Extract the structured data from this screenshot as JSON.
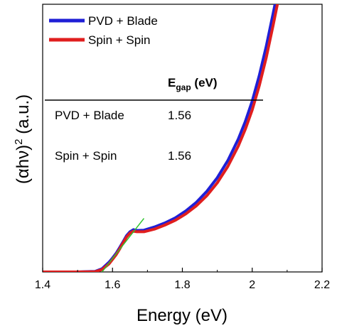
{
  "chart_data": {
    "type": "line",
    "xlabel": "Energy (eV)",
    "ylabel_main": "(αhν)",
    "ylabel_sup": "2",
    "ylabel_tail": " (a.u.)",
    "xlim": [
      1.4,
      2.2
    ],
    "ylim": [
      0,
      100
    ],
    "x_ticks": [
      1.4,
      1.6,
      1.8,
      2.0,
      2.2
    ],
    "x_tick_labels": [
      "1.4",
      "1.6",
      "1.8",
      "2",
      "2.2"
    ],
    "legend_position": "top-left",
    "series": [
      {
        "name": "PVD + Blade",
        "color": "#1f1fd6",
        "x": [
          1.4,
          1.5,
          1.55,
          1.57,
          1.59,
          1.6,
          1.61,
          1.62,
          1.63,
          1.64,
          1.65,
          1.66,
          1.67,
          1.69,
          1.72,
          1.75,
          1.78,
          1.81,
          1.84,
          1.87,
          1.9,
          1.93,
          1.96,
          1.98,
          2.0,
          2.02,
          2.04,
          2.06,
          2.07
        ],
        "y": [
          0,
          0,
          0.2,
          1.2,
          3.6,
          5.2,
          6.9,
          9.0,
          11.2,
          13.5,
          15.0,
          15.8,
          15.5,
          15.6,
          16.8,
          18.3,
          20.2,
          22.8,
          26.0,
          30.1,
          35.2,
          41.6,
          49.6,
          56.1,
          63.8,
          73.3,
          84.2,
          96.6,
          103.0
        ]
      },
      {
        "name": "Spin + Spin",
        "color": "#e01e1e",
        "x": [
          1.4,
          1.5,
          1.55,
          1.57,
          1.59,
          1.6,
          1.61,
          1.62,
          1.63,
          1.64,
          1.65,
          1.66,
          1.67,
          1.69,
          1.72,
          1.75,
          1.78,
          1.81,
          1.84,
          1.87,
          1.9,
          1.93,
          1.96,
          1.98,
          2.0,
          2.02,
          2.04,
          2.06,
          2.08
        ],
        "y": [
          0,
          0,
          0.1,
          0.9,
          3.0,
          4.7,
          6.4,
          8.5,
          10.8,
          13.0,
          14.5,
          15.2,
          15.0,
          15.0,
          16.0,
          17.5,
          19.3,
          21.7,
          24.7,
          28.5,
          33.3,
          39.4,
          47.0,
          53.2,
          60.5,
          69.5,
          80.0,
          92.2,
          105.0
        ]
      }
    ],
    "fit_line": {
      "color": "#2ec42e",
      "x": [
        1.57,
        1.69
      ],
      "y": [
        0,
        20.0
      ]
    },
    "table": {
      "header_label": "E",
      "header_sub": "gap",
      "header_unit": " (eV)",
      "rows": [
        {
          "label": "PVD + Blade",
          "value": "1.56"
        },
        {
          "label": "Spin + Spin",
          "value": "1.56"
        }
      ]
    }
  }
}
